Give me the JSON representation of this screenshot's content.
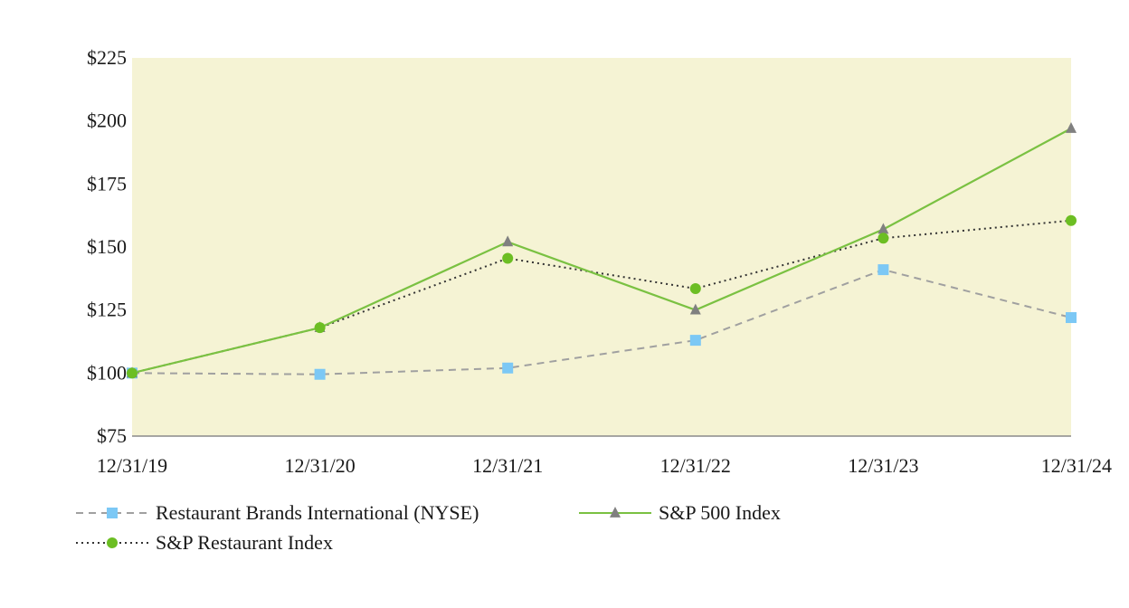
{
  "chart_data": {
    "type": "line",
    "title": "",
    "xlabel": "",
    "ylabel": "",
    "categories": [
      "12/31/19",
      "12/31/20",
      "12/31/21",
      "12/31/22",
      "12/31/23",
      "12/31/24"
    ],
    "ylim": [
      75,
      225
    ],
    "yticks": [
      75,
      100,
      125,
      150,
      175,
      200,
      225
    ],
    "ytick_labels": [
      "$75",
      "$100",
      "$125",
      "$150",
      "$175",
      "$200",
      "$225"
    ],
    "plot_background": "#f5f3d4",
    "grid": false,
    "legend_position": "bottom-left",
    "series": [
      {
        "name": "Restaurant Brands International (NYSE)",
        "values": [
          100,
          99.5,
          102,
          113,
          141,
          122
        ],
        "color": "#a0a0a0",
        "marker_color": "#7cc8f5",
        "marker": "square",
        "line_style": "dashed"
      },
      {
        "name": "S&P 500 Index",
        "values": [
          100,
          118,
          152,
          125,
          157,
          197
        ],
        "color": "#7ac142",
        "marker_color": "#808080",
        "marker": "triangle",
        "line_style": "solid"
      },
      {
        "name": "S&P Restaurant Index",
        "values": [
          100,
          118,
          145.5,
          133.5,
          153.5,
          160.5
        ],
        "color": "#333333",
        "marker_color": "#6cbe23",
        "marker": "circle",
        "line_style": "dotted"
      }
    ]
  }
}
